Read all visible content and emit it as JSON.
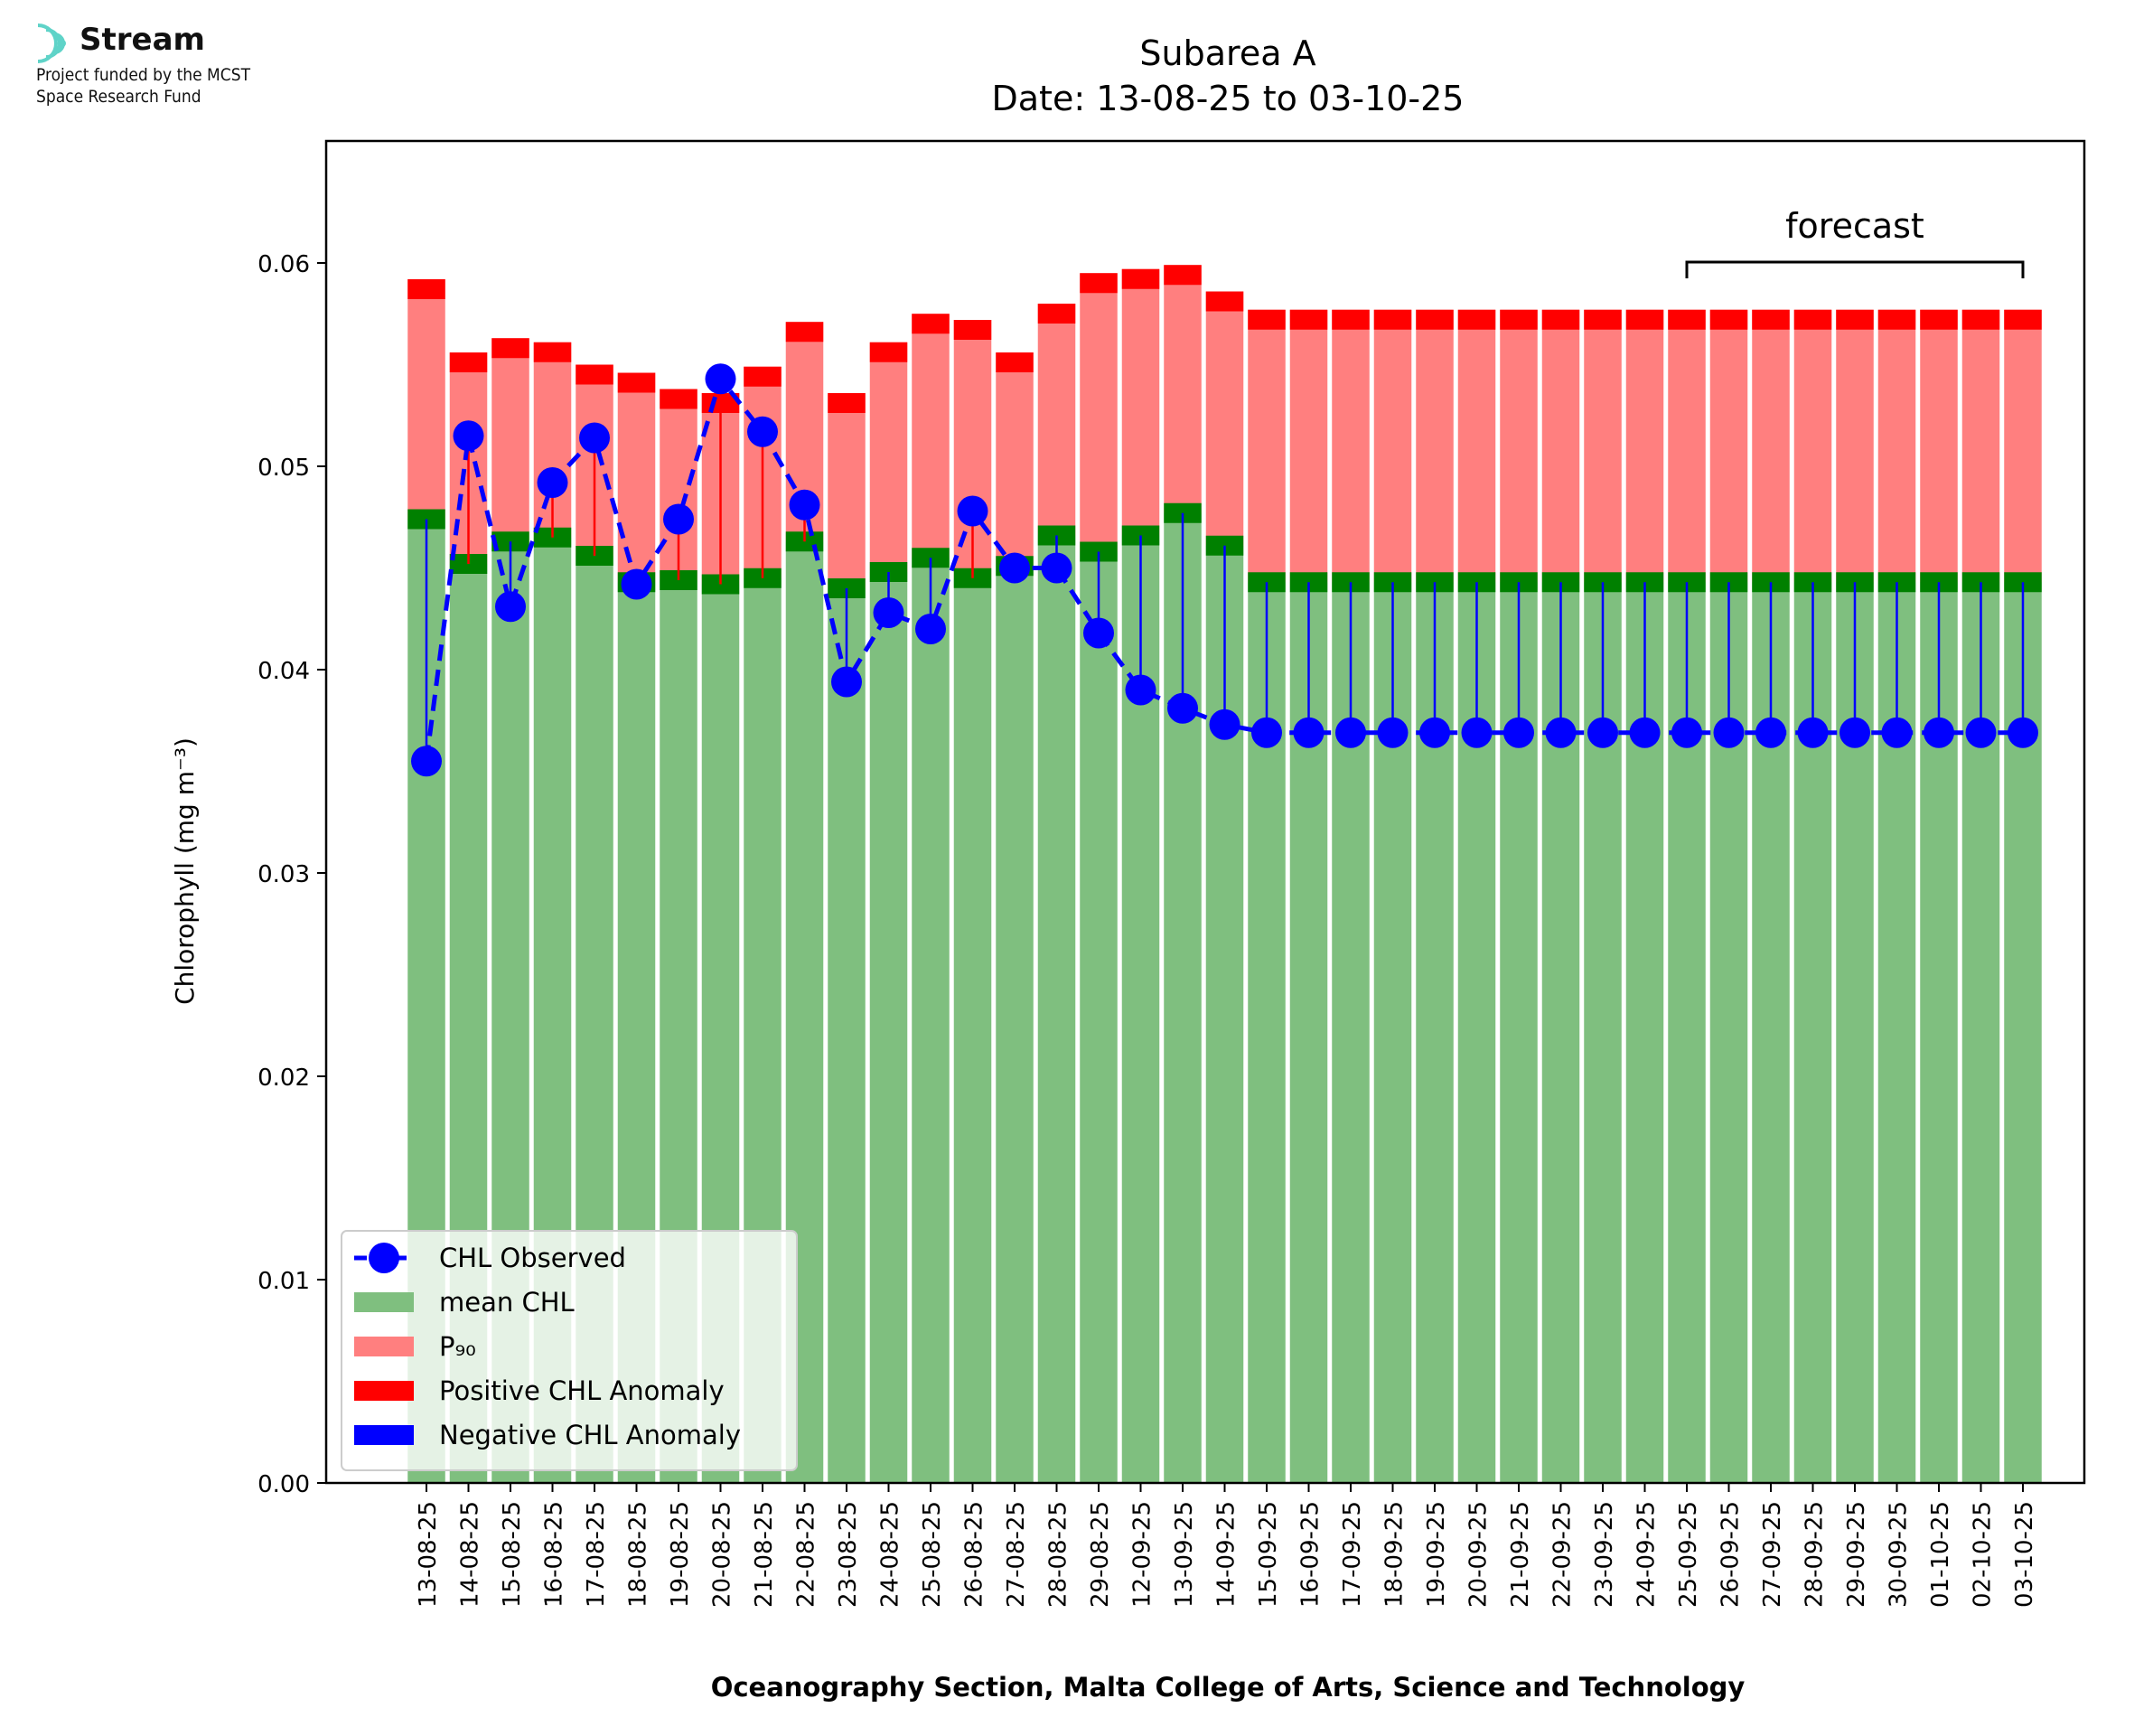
{
  "logo": {
    "name": "Stream",
    "line1": "Project funded by the MCST",
    "line2": "Space Research Fund"
  },
  "chart_data": {
    "type": "bar",
    "title": "Subarea A",
    "subtitle": "Date: 13-08-25 to 03-10-25",
    "xlabel": "Oceanography Section, Malta College of Arts, Science and Technology",
    "ylabel": "Chlorophyll (mg m⁻³)",
    "ylim": [
      0,
      0.066
    ],
    "yticks": [
      "0.00",
      "0.01",
      "0.02",
      "0.03",
      "0.04",
      "0.05",
      "0.06"
    ],
    "categories": [
      "13-08-25",
      "14-08-25",
      "15-08-25",
      "16-08-25",
      "17-08-25",
      "18-08-25",
      "19-08-25",
      "20-08-25",
      "21-08-25",
      "22-08-25",
      "23-08-25",
      "24-08-25",
      "25-08-25",
      "26-08-25",
      "27-08-25",
      "28-08-25",
      "29-08-25",
      "12-09-25",
      "13-09-25",
      "14-09-25",
      "15-09-25",
      "16-09-25",
      "17-09-25",
      "18-09-25",
      "19-09-25",
      "20-09-25",
      "21-09-25",
      "22-09-25",
      "23-09-25",
      "24-09-25",
      "25-09-25",
      "26-09-25",
      "27-09-25",
      "28-09-25",
      "29-09-25",
      "30-09-25",
      "01-10-25",
      "02-10-25",
      "03-10-25"
    ],
    "series": [
      {
        "name": "mean CHL",
        "color": "#7fbf7f",
        "band_color": "#008000",
        "values": [
          0.0474,
          0.0452,
          0.0463,
          0.0465,
          0.0456,
          0.0443,
          0.0444,
          0.0442,
          0.0445,
          0.0463,
          0.044,
          0.0448,
          0.0455,
          0.0445,
          0.0451,
          0.0466,
          0.0458,
          0.0466,
          0.0477,
          0.0461,
          0.0443,
          0.0443,
          0.0443,
          0.0443,
          0.0443,
          0.0443,
          0.0443,
          0.0443,
          0.0443,
          0.0443,
          0.0443,
          0.0443,
          0.0443,
          0.0443,
          0.0443,
          0.0443,
          0.0443,
          0.0443,
          0.0443
        ]
      },
      {
        "name": "P₉₀",
        "color": "#ff7f7f",
        "band_color": "#ff0000",
        "values": [
          0.0592,
          0.0556,
          0.0563,
          0.0561,
          0.055,
          0.0546,
          0.0538,
          0.0536,
          0.0549,
          0.0571,
          0.0536,
          0.0561,
          0.0575,
          0.0572,
          0.0556,
          0.058,
          0.0595,
          0.0597,
          0.0599,
          0.0586,
          0.0577,
          0.0577,
          0.0577,
          0.0577,
          0.0577,
          0.0577,
          0.0577,
          0.0577,
          0.0577,
          0.0577,
          0.0577,
          0.0577,
          0.0577,
          0.0577,
          0.0577,
          0.0577,
          0.0577,
          0.0577,
          0.0577
        ]
      },
      {
        "name": "CHL Observed",
        "color": "#0000ff",
        "values": [
          0.0355,
          0.0515,
          0.0431,
          0.0492,
          0.0514,
          0.0442,
          0.0474,
          0.0543,
          0.0517,
          0.0481,
          0.0394,
          0.0428,
          0.042,
          0.0478,
          0.045,
          0.045,
          0.0418,
          0.039,
          0.0381,
          0.0373,
          0.0369,
          0.0369,
          0.0369,
          0.0369,
          0.0369,
          0.0369,
          0.0369,
          0.0369,
          0.0369,
          0.0369,
          0.0369,
          0.0369,
          0.0369,
          0.0369,
          0.0369,
          0.0369,
          0.0369,
          0.0369,
          0.0369
        ]
      }
    ],
    "anomaly_colors": {
      "positive": "#ff0000",
      "negative": "#0000ff"
    },
    "legend": {
      "placement": "lower-left",
      "entries": [
        {
          "label": "CHL Observed",
          "kind": "line-marker",
          "color": "#0000ff"
        },
        {
          "label": "mean CHL",
          "kind": "patch",
          "color": "#7fbf7f"
        },
        {
          "label": "P₉₀",
          "kind": "patch",
          "color": "#ff7f7f"
        },
        {
          "label": "Positive CHL Anomaly",
          "kind": "patch",
          "color": "#ff0000"
        },
        {
          "label": "Negative CHL Anomaly",
          "kind": "patch",
          "color": "#0000ff"
        }
      ]
    },
    "annotation": {
      "text": "forecast",
      "from": "25-09-25",
      "to": "03-10-25"
    },
    "grid": false
  }
}
